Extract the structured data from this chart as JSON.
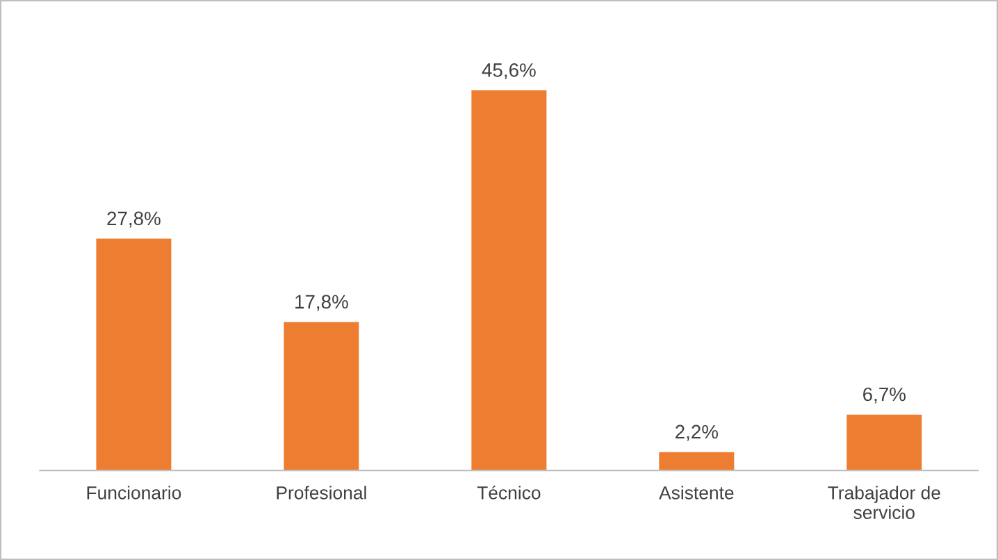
{
  "chart_data": {
    "type": "bar",
    "categories": [
      "Funcionario",
      "Profesional",
      "Técnico",
      "Asistente",
      "Trabajador de\nservicio"
    ],
    "values": [
      27.8,
      17.8,
      45.6,
      2.2,
      6.7
    ],
    "value_labels": [
      "27,8%",
      "17,8%",
      "45,6%",
      "2,2%",
      "6,7%"
    ],
    "color": "#ed7d31",
    "grid": false,
    "legend": false
  }
}
